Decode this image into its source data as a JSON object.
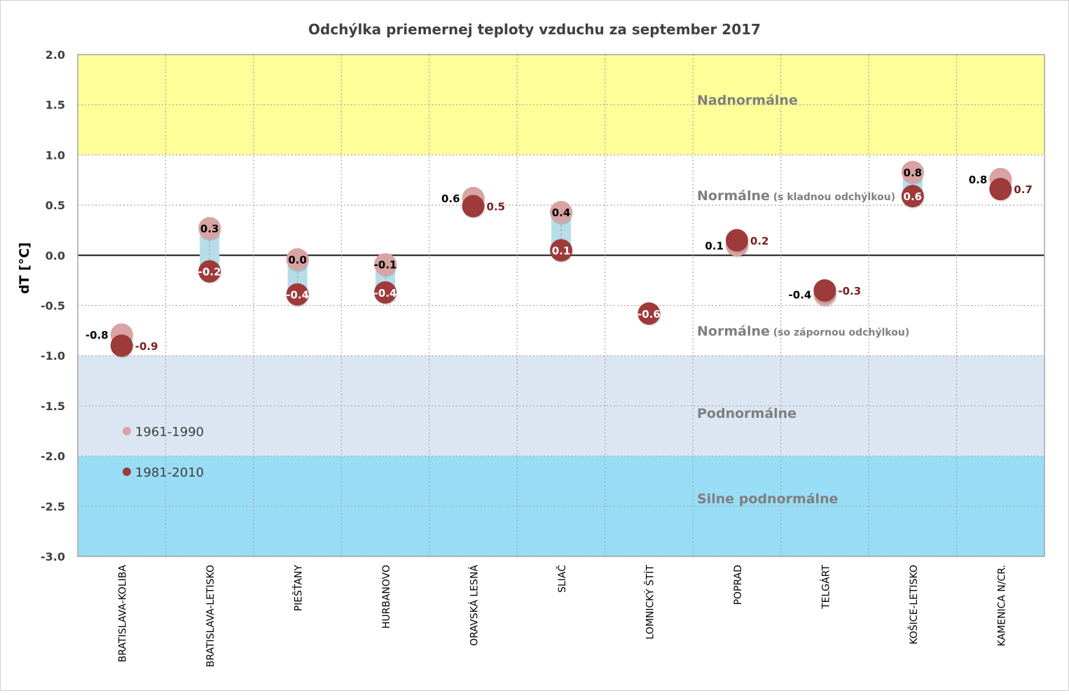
{
  "chart_data": {
    "type": "scatter",
    "title": "Odchýlka priemernej teploty vzduchu za september 2017",
    "xlabel": "",
    "ylabel": "dT [°C]",
    "ylim": [
      -3.0,
      2.0
    ],
    "yticks": [
      "2.0",
      "1.5",
      "1.0",
      "0.5",
      "0.0",
      "-0.5",
      "-1.0",
      "-1.5",
      "-2.0",
      "-2.5",
      "-3.0"
    ],
    "ytick_values": [
      2.0,
      1.5,
      1.0,
      0.5,
      0.0,
      -0.5,
      -1.0,
      -1.5,
      -2.0,
      -2.5,
      -3.0
    ],
    "grid": true,
    "categories": [
      "BRATISLAVA-KOLIBA",
      "BRATISLAVA-LETISKO",
      "PIEŠŤANY",
      "HURBANOVO",
      "ORAVSKÁ LESNÁ",
      "SLIAČ",
      "LOMNICKÝ ŠTÍT",
      "POPRAD",
      "TELGÁRT",
      "KOŠICE-LETISKO",
      "KAMENICA N/CR."
    ],
    "series": [
      {
        "name": "1961-1990",
        "color": "#d9a3a3",
        "label_color": "#000000",
        "values": [
          -0.79,
          0.27,
          -0.04,
          -0.09,
          0.57,
          0.43,
          null,
          0.1,
          -0.39,
          0.83,
          0.76
        ],
        "labels": [
          "-0.8",
          "0.3",
          "0.0",
          "-0.1",
          "0.6",
          "0.4",
          null,
          "0.1",
          "-0.4",
          "0.8",
          "0.8"
        ]
      },
      {
        "name": "1981-2010",
        "color": "#9e3a3a",
        "label_color": "#ffffff",
        "values": [
          -0.9,
          -0.16,
          -0.39,
          -0.37,
          0.49,
          0.05,
          -0.58,
          0.15,
          -0.35,
          0.59,
          0.66
        ],
        "labels": [
          "-0.9",
          "-0.2",
          "-0.4",
          "-0.4",
          "0.5",
          "0.1",
          "-0.6",
          "0.2",
          "-0.3",
          "0.6",
          "0.7"
        ]
      }
    ],
    "bands": [
      {
        "label": "Nadnormálne",
        "note": "",
        "from": 1.0,
        "to": 2.0,
        "color": "#ffff99"
      },
      {
        "label": "Normálne",
        "note": "(s kladnou odchýlkou)",
        "from": 0.0,
        "to": 1.0,
        "color": "#ffffff"
      },
      {
        "label": "Normálne",
        "note": "(so zápornou odchýlkou)",
        "from": -1.0,
        "to": 0.0,
        "color": "#ffffff"
      },
      {
        "label": "Podnormálne",
        "note": "",
        "from": -2.0,
        "to": -1.0,
        "color": "#dce6f2"
      },
      {
        "label": "Silne podnormálne",
        "note": "",
        "from": -3.0,
        "to": -2.0,
        "color": "#99dcf5"
      }
    ],
    "range_bar_color": "#b7dde8",
    "legend_position": "bottom-left"
  }
}
